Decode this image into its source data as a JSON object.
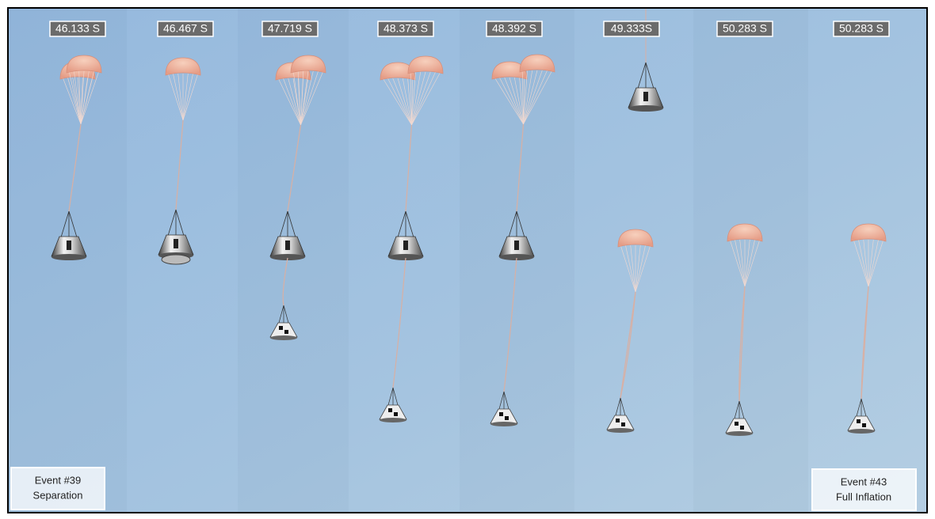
{
  "timestamps": [
    "46.133 S",
    "46.467 S",
    "47.719 S",
    "48.373 S",
    "48.392 S",
    "49.333S",
    "50.283 S",
    "50.283 S"
  ],
  "events": [
    {
      "number": "Event #39",
      "name": "Separation"
    },
    {
      "number": "Event #43",
      "name": "Full Inflation"
    }
  ]
}
